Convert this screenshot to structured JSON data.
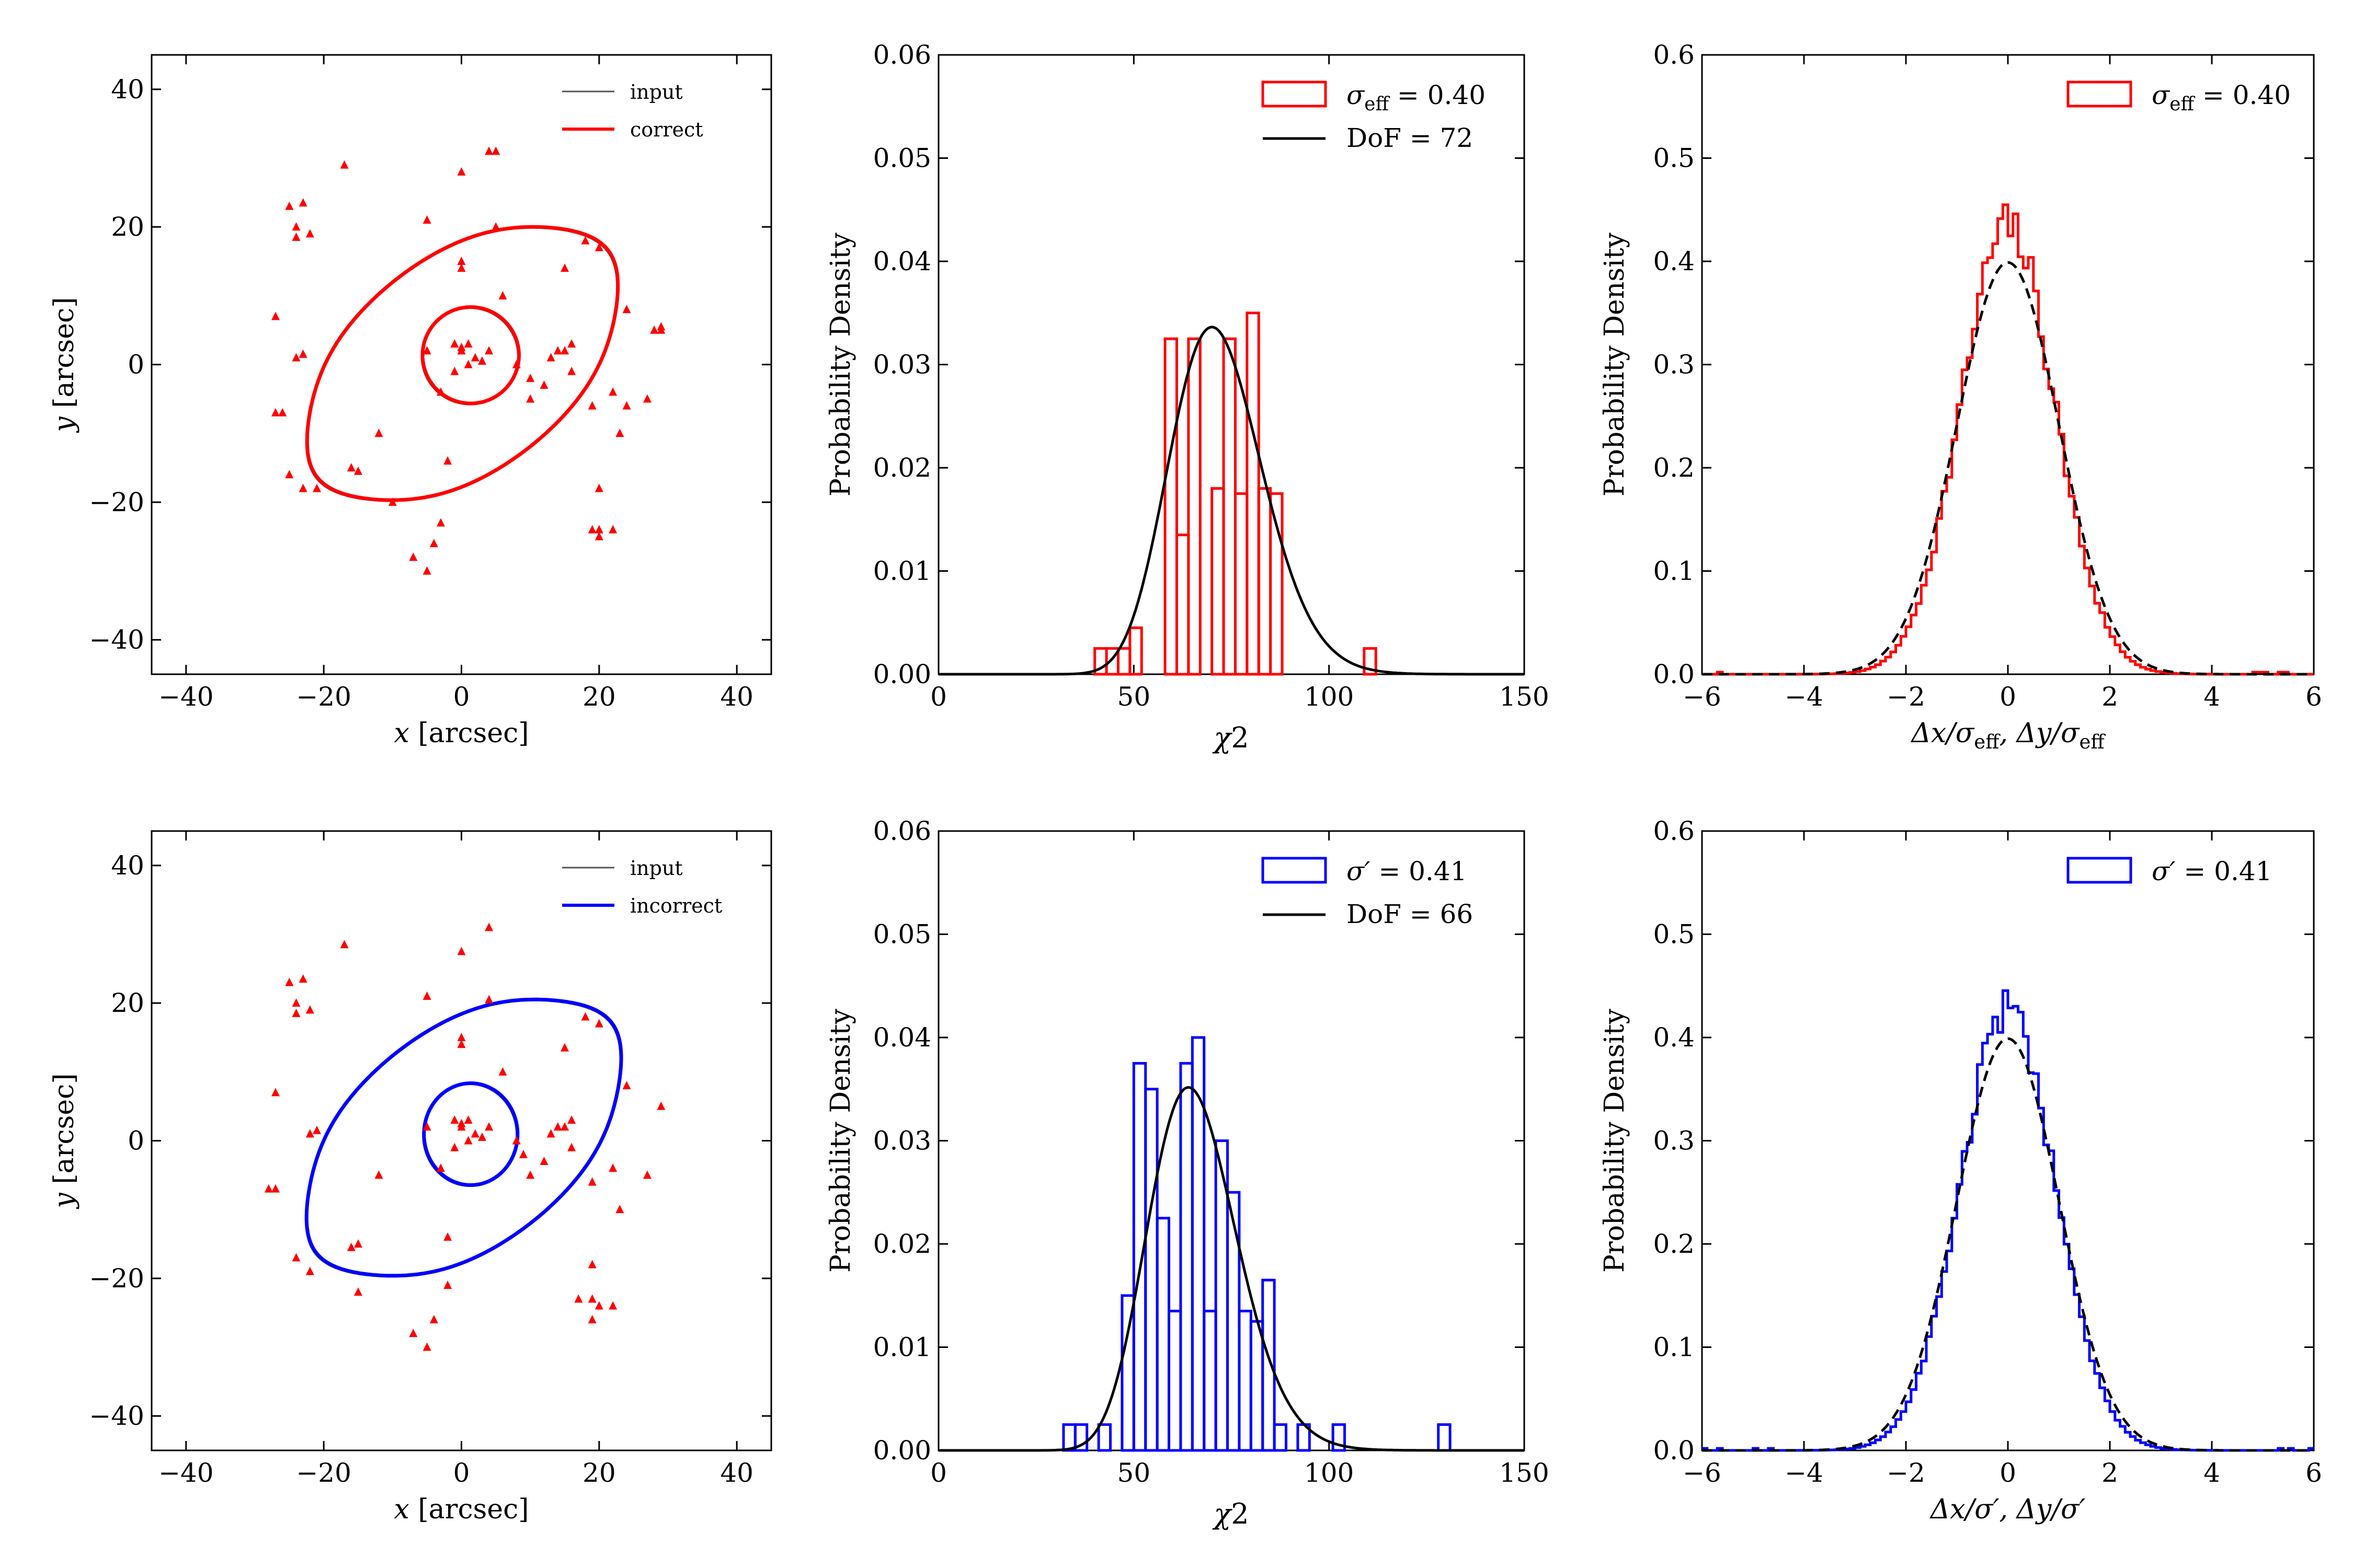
{
  "colors": {
    "red": "#ff0000",
    "blue": "#0000ff",
    "black": "#000000",
    "gray": "#555555"
  },
  "chart_data": [
    {
      "id": "map-correct",
      "type": "scatter",
      "xlabel": "x [arcsec]",
      "ylabel": "y [arcsec]",
      "xlim": [
        -45,
        45
      ],
      "ylim": [
        -45,
        45
      ],
      "xticks": [
        "−40",
        "−20",
        "0",
        "20",
        "40"
      ],
      "xtick_values": [
        -40,
        -20,
        0,
        20,
        40
      ],
      "yticks": [
        "−40",
        "−20",
        "0",
        "20",
        "40"
      ],
      "ytick_values": [
        -40,
        -20,
        0,
        20,
        40
      ],
      "legend": [
        {
          "label": "input",
          "color": "#555555"
        },
        {
          "label": "correct",
          "color": "#ff0000"
        }
      ],
      "points": [
        [
          -25,
          23
        ],
        [
          -23,
          23.5
        ],
        [
          -24,
          20
        ],
        [
          -24,
          18.5
        ],
        [
          -22,
          19
        ],
        [
          -17,
          29
        ],
        [
          -27,
          7
        ],
        [
          -27,
          -7
        ],
        [
          -26,
          -7
        ],
        [
          -24,
          1
        ],
        [
          -23,
          1.5
        ],
        [
          -25,
          -16
        ],
        [
          -23,
          -18
        ],
        [
          -21,
          -18
        ],
        [
          -16,
          -15
        ],
        [
          -15,
          -15.5
        ],
        [
          -12,
          -10
        ],
        [
          -10,
          -20
        ],
        [
          -7,
          -28
        ],
        [
          -5,
          -30
        ],
        [
          -4,
          -26
        ],
        [
          -3,
          -23
        ],
        [
          -3,
          -4
        ],
        [
          -2,
          -14
        ],
        [
          -5,
          21
        ],
        [
          -5,
          2
        ],
        [
          -1,
          3
        ],
        [
          0,
          2
        ],
        [
          1,
          3
        ],
        [
          0,
          2.5
        ],
        [
          2,
          1
        ],
        [
          3,
          0.5
        ],
        [
          4,
          2
        ],
        [
          1,
          0
        ],
        [
          -1,
          -1
        ],
        [
          0,
          15
        ],
        [
          0,
          14
        ],
        [
          0,
          28
        ],
        [
          4,
          31
        ],
        [
          5,
          31
        ],
        [
          5,
          20
        ],
        [
          6,
          10
        ],
        [
          8,
          0
        ],
        [
          10,
          -2
        ],
        [
          10,
          -5
        ],
        [
          13,
          1
        ],
        [
          14,
          2
        ],
        [
          15,
          2
        ],
        [
          16,
          3
        ],
        [
          15,
          14
        ],
        [
          18,
          18
        ],
        [
          20,
          17
        ],
        [
          19,
          -6
        ],
        [
          22,
          -4
        ],
        [
          23,
          -10
        ],
        [
          20,
          -18
        ],
        [
          19,
          -24
        ],
        [
          20,
          -24
        ],
        [
          22,
          -24
        ],
        [
          24,
          -6
        ],
        [
          27,
          -5
        ],
        [
          29,
          5
        ],
        [
          29,
          5.5
        ],
        [
          28,
          5
        ],
        [
          24,
          8
        ],
        [
          16,
          -1
        ],
        [
          12,
          -3
        ],
        [
          20,
          -25
        ]
      ],
      "curves": [
        {
          "name": "critical-outer",
          "kind": "outer",
          "cx": 0,
          "cy": 0,
          "a": 26.8,
          "b": 14.6,
          "theta_deg": 38,
          "m": 2,
          "k": 0.11
        },
        {
          "name": "critical-inner",
          "kind": "circle",
          "cx": 1.2,
          "cy": 1.2,
          "rx": 7.0,
          "ry": 7.0
        }
      ]
    },
    {
      "id": "chi2-correct",
      "type": "bar",
      "xlabel": "χ²",
      "ylabel": "Probability Density",
      "xlim": [
        0,
        150
      ],
      "ylim": [
        0,
        0.06
      ],
      "xticks": [
        "0",
        "50",
        "100",
        "150"
      ],
      "xtick_values": [
        0,
        50,
        100,
        150
      ],
      "yticks": [
        "0.00",
        "0.01",
        "0.02",
        "0.03",
        "0.04",
        "0.05",
        "0.06"
      ],
      "ytick_values": [
        0,
        0.01,
        0.02,
        0.03,
        0.04,
        0.05,
        0.06
      ],
      "bin_edges": [
        40,
        43,
        46,
        49,
        52,
        55,
        58,
        61,
        64,
        67,
        70,
        73,
        76,
        79,
        82,
        85,
        88,
        91,
        94,
        97,
        100,
        103,
        106,
        109,
        112
      ],
      "hist": [
        0.0025,
        0.0025,
        0.0025,
        0.0045,
        0.0,
        0.0,
        0.0325,
        0.0135,
        0.0325,
        0.0,
        0.018,
        0.0325,
        0.0175,
        0.035,
        0.018,
        0.0175,
        0.0,
        0.0,
        0.0,
        0.0,
        0.0,
        0.0,
        0.0,
        0.0025
      ],
      "pdf_dof": 72,
      "pdf_scale": 1.0,
      "legend": [
        {
          "label": "σ",
          "sub": "eff",
          "value": " = 0.40",
          "kind": "box"
        },
        {
          "label": "DoF = 72",
          "kind": "line"
        }
      ]
    },
    {
      "id": "resid-correct",
      "type": "bar",
      "xlabel": "Δx/σ",
      "xlabel_sub": "eff",
      "xlabel_mid": ", Δy/σ",
      "xlabel_sub2": "eff",
      "ylabel": "Probability Density",
      "xlim": [
        -6,
        6
      ],
      "ylim": [
        0,
        0.6
      ],
      "xticks": [
        "−6",
        "−4",
        "−2",
        "0",
        "2",
        "4",
        "6"
      ],
      "xtick_values": [
        -6,
        -4,
        -2,
        0,
        2,
        4,
        6
      ],
      "yticks": [
        "0.0",
        "0.1",
        "0.2",
        "0.3",
        "0.4",
        "0.5",
        "0.6"
      ],
      "ytick_values": [
        0,
        0.1,
        0.2,
        0.3,
        0.4,
        0.5,
        0.6
      ],
      "step_bins": {
        "start": -6,
        "width": 0.1,
        "n": 120,
        "sigma": 0.92,
        "noise": 0.055,
        "seed": 7
      },
      "legend": [
        {
          "label": "σ",
          "sub": "eff",
          "value": " = 0.40",
          "kind": "box"
        }
      ]
    },
    {
      "id": "map-incorrect",
      "type": "scatter",
      "xlabel": "x [arcsec]",
      "ylabel": "y [arcsec]",
      "xlim": [
        -45,
        45
      ],
      "ylim": [
        -45,
        45
      ],
      "xticks": [
        "−40",
        "−20",
        "0",
        "20",
        "40"
      ],
      "xtick_values": [
        -40,
        -20,
        0,
        20,
        40
      ],
      "yticks": [
        "−40",
        "−20",
        "0",
        "20",
        "40"
      ],
      "ytick_values": [
        -40,
        -20,
        0,
        20,
        40
      ],
      "legend": [
        {
          "label": "input",
          "color": "#555555"
        },
        {
          "label": "incorrect",
          "color": "#0000ff"
        }
      ],
      "points": [
        [
          -25,
          23
        ],
        [
          -23,
          23.5
        ],
        [
          -24,
          20
        ],
        [
          -24,
          18.5
        ],
        [
          -22,
          19
        ],
        [
          -17,
          28.5
        ],
        [
          -27,
          7
        ],
        [
          -28,
          -7
        ],
        [
          -27,
          -7
        ],
        [
          -22,
          1
        ],
        [
          -21,
          1.5
        ],
        [
          -24,
          -17
        ],
        [
          -22,
          -19
        ],
        [
          -15,
          -15
        ],
        [
          -16,
          -15.5
        ],
        [
          -15,
          -22
        ],
        [
          -12,
          -5
        ],
        [
          -7,
          -28
        ],
        [
          -5,
          -30
        ],
        [
          -4,
          -26
        ],
        [
          -2,
          -21
        ],
        [
          -3,
          -4
        ],
        [
          -2,
          -14
        ],
        [
          -5,
          21
        ],
        [
          -5,
          2
        ],
        [
          -1,
          3
        ],
        [
          0,
          2
        ],
        [
          1,
          3
        ],
        [
          0,
          2.5
        ],
        [
          2,
          1
        ],
        [
          3,
          0.5
        ],
        [
          4,
          2
        ],
        [
          1,
          0
        ],
        [
          -1,
          -1
        ],
        [
          0,
          15
        ],
        [
          0,
          14
        ],
        [
          0,
          27.5
        ],
        [
          4,
          31
        ],
        [
          4,
          20.5
        ],
        [
          6,
          10
        ],
        [
          8,
          0
        ],
        [
          9,
          -2
        ],
        [
          10,
          -5
        ],
        [
          13,
          1
        ],
        [
          14,
          2
        ],
        [
          15,
          2
        ],
        [
          16,
          3
        ],
        [
          15,
          13.5
        ],
        [
          18,
          18
        ],
        [
          20,
          17
        ],
        [
          19,
          -6
        ],
        [
          22,
          -4
        ],
        [
          23,
          -10
        ],
        [
          19,
          -18
        ],
        [
          19,
          -23
        ],
        [
          20,
          -24
        ],
        [
          22,
          -24
        ],
        [
          27,
          -5
        ],
        [
          29,
          5
        ],
        [
          24,
          8
        ],
        [
          16,
          -1
        ],
        [
          12,
          -3
        ],
        [
          19,
          -26
        ],
        [
          17,
          -23
        ]
      ],
      "curves": [
        {
          "name": "critical-outer",
          "kind": "outer",
          "cx": 0.2,
          "cy": 0.3,
          "a": 27.2,
          "b": 14.7,
          "theta_deg": 38,
          "m": 2,
          "k": 0.12
        },
        {
          "name": "critical-inner",
          "kind": "circle",
          "cx": 1.2,
          "cy": 0.8,
          "rx": 6.8,
          "ry": 7.4
        }
      ]
    },
    {
      "id": "chi2-incorrect",
      "type": "bar",
      "xlabel": "χ²",
      "ylabel": "Probability Density",
      "xlim": [
        0,
        150
      ],
      "ylim": [
        0,
        0.06
      ],
      "xticks": [
        "0",
        "50",
        "100",
        "150"
      ],
      "xtick_values": [
        0,
        50,
        100,
        150
      ],
      "yticks": [
        "0.00",
        "0.01",
        "0.02",
        "0.03",
        "0.04",
        "0.05",
        "0.06"
      ],
      "ytick_values": [
        0,
        0.01,
        0.02,
        0.03,
        0.04,
        0.05,
        0.06
      ],
      "bin_edges": [
        32,
        35,
        38,
        41,
        44,
        47,
        50,
        53,
        56,
        59,
        62,
        65,
        68,
        71,
        74,
        77,
        80,
        83,
        86,
        89,
        92,
        95,
        98,
        101,
        104,
        107,
        110,
        113,
        116,
        119,
        122,
        125,
        128,
        131
      ],
      "hist": [
        0.0025,
        0.0025,
        0.0,
        0.0025,
        0.0,
        0.015,
        0.0375,
        0.035,
        0.0225,
        0.0135,
        0.0375,
        0.04,
        0.0135,
        0.03,
        0.025,
        0.0135,
        0.0125,
        0.0165,
        0.0025,
        0.0,
        0.0025,
        0.0,
        0.0,
        0.0025,
        0.0,
        0.0,
        0.0,
        0.0,
        0.0,
        0.0,
        0.0,
        0.0,
        0.0025
      ],
      "pdf_dof": 66,
      "pdf_scale": 1.0,
      "legend": [
        {
          "label": "σ′",
          "sub": "",
          "value": " = 0.41",
          "kind": "box"
        },
        {
          "label": "DoF = 66",
          "kind": "line"
        }
      ]
    },
    {
      "id": "resid-incorrect",
      "type": "bar",
      "xlabel": "Δx/σ′, Δy/σ′",
      "xlabel_sub": "",
      "xlabel_mid": "",
      "xlabel_sub2": "",
      "ylabel": "Probability Density",
      "xlim": [
        -6,
        6
      ],
      "ylim": [
        0,
        0.6
      ],
      "xticks": [
        "−6",
        "−4",
        "−2",
        "0",
        "2",
        "4",
        "6"
      ],
      "xtick_values": [
        -6,
        -4,
        -2,
        0,
        2,
        4,
        6
      ],
      "yticks": [
        "0.0",
        "0.1",
        "0.2",
        "0.3",
        "0.4",
        "0.5",
        "0.6"
      ],
      "ytick_values": [
        0,
        0.1,
        0.2,
        0.3,
        0.4,
        0.5,
        0.6
      ],
      "step_bins": {
        "start": -6,
        "width": 0.1,
        "n": 120,
        "sigma": 0.93,
        "noise": 0.045,
        "seed": 19
      },
      "legend": [
        {
          "label": "σ′",
          "sub": "",
          "value": " = 0.41",
          "kind": "box"
        }
      ]
    }
  ]
}
